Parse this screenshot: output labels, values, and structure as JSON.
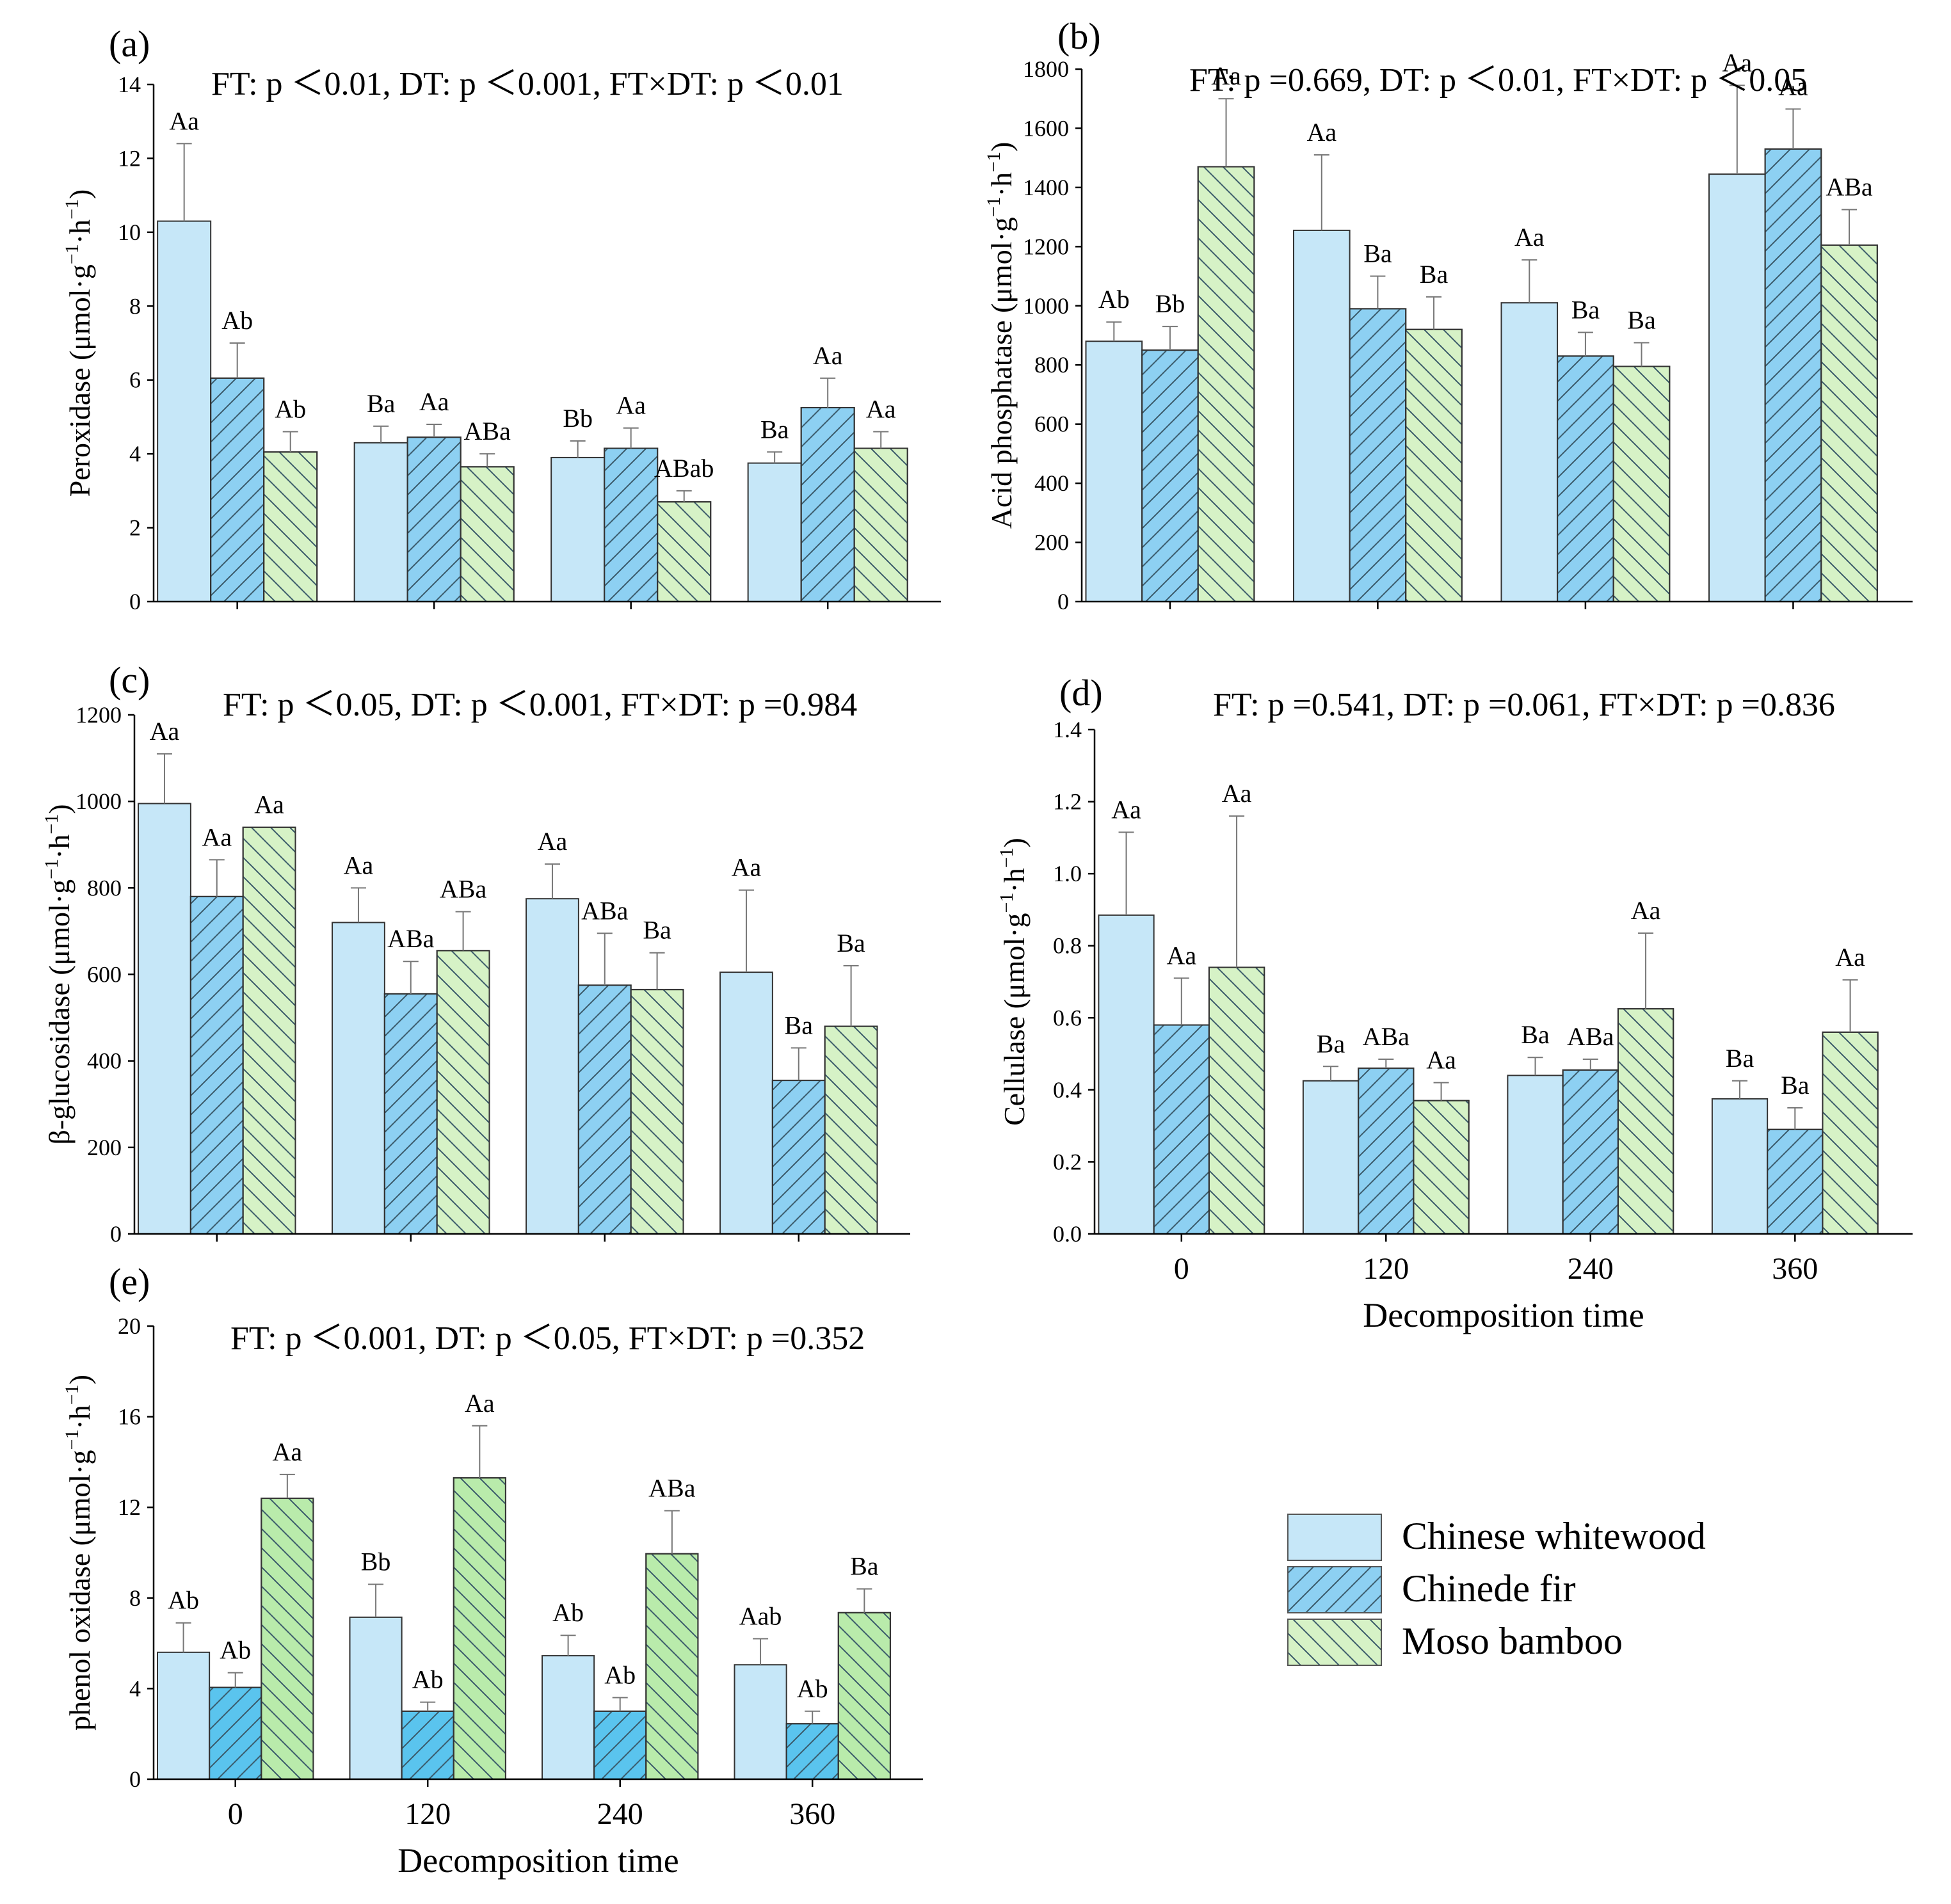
{
  "series_names": [
    "Chinese whitewood",
    "Chinede fir",
    "Moso bamboo"
  ],
  "x_categories": [
    "0",
    "120",
    "240",
    "360"
  ],
  "x_axis_label": "Decomposition time",
  "colors": {
    "chinese_whitewood": "#c6e7f8",
    "chinede_fir": "#8dd0f2",
    "chinede_fir_e": "#5ac4ee",
    "moso_bamboo": "#d6f2c6",
    "moso_bamboo_e": "#b9ebab",
    "hatch": "#3a5a6a",
    "error_bar": "#777777"
  },
  "chart_data": [
    {
      "type": "bar",
      "panel": "(a)",
      "title": "FT: p ＜0.01, DT: p ＜0.001, FT×DT: p ＜0.01",
      "ylabel_main": "Peroxidase (μmol·g",
      "ylabel_sup1": "−1",
      "ylabel_mid": "·h",
      "ylabel_sup2": "−1",
      "ylabel_end": ")",
      "ylim": [
        0,
        14
      ],
      "yticks": [
        "0",
        "2",
        "4",
        "6",
        "8",
        "10",
        "12",
        "14"
      ],
      "categories": [
        "0",
        "120",
        "240",
        "360"
      ],
      "series": [
        {
          "name": "Chinese whitewood",
          "values": [
            10.3,
            4.3,
            3.9,
            3.75
          ],
          "errors": [
            2.1,
            0.45,
            0.45,
            0.3
          ],
          "labels": [
            "Aa",
            "Ba",
            "Bb",
            "Ba"
          ]
        },
        {
          "name": "Chinede fir",
          "values": [
            6.05,
            4.45,
            4.15,
            5.25
          ],
          "errors": [
            0.95,
            0.35,
            0.55,
            0.8
          ],
          "labels": [
            "Ab",
            "Aa",
            "Aa",
            "Aa"
          ]
        },
        {
          "name": "Moso bamboo",
          "values": [
            4.05,
            3.65,
            2.7,
            4.15
          ],
          "errors": [
            0.55,
            0.35,
            0.3,
            0.45
          ],
          "labels": [
            "Ab",
            "ABa",
            "ABab",
            "Aa"
          ]
        }
      ]
    },
    {
      "type": "bar",
      "panel": "(b)",
      "title": "FT: p =0.669, DT: p ＜0.01, FT×DT: p ＜0.05",
      "ylabel_main": "Acid phosphatase (μmol·g",
      "ylabel_sup1": "−1",
      "ylabel_mid": "·h",
      "ylabel_sup2": "−1",
      "ylabel_end": ")",
      "ylim": [
        0,
        1800
      ],
      "yticks": [
        "0",
        "200",
        "400",
        "600",
        "800",
        "1000",
        "1200",
        "1400",
        "1600",
        "1800"
      ],
      "categories": [
        "0",
        "120",
        "240",
        "360"
      ],
      "series": [
        {
          "name": "Chinese whitewood",
          "values": [
            880,
            1255,
            1010,
            1445
          ],
          "errors": [
            65,
            255,
            145,
            300
          ],
          "labels": [
            "Ab",
            "Aa",
            "Aa",
            "Aa"
          ]
        },
        {
          "name": "Chinede fir",
          "values": [
            850,
            990,
            830,
            1530
          ],
          "errors": [
            80,
            110,
            80,
            135
          ],
          "labels": [
            "Bb",
            "Ba",
            "Ba",
            "Aa"
          ]
        },
        {
          "name": "Moso bamboo",
          "values": [
            1470,
            920,
            795,
            1205
          ],
          "errors": [
            230,
            110,
            80,
            120
          ],
          "labels": [
            "Aa",
            "Ba",
            "Ba",
            "ABa"
          ]
        }
      ]
    },
    {
      "type": "bar",
      "panel": "(c)",
      "title": "FT: p ＜0.05, DT: p ＜0.001, FT×DT: p =0.984",
      "ylabel_main": "β-glucosidase (μmol·g",
      "ylabel_sup1": "−1",
      "ylabel_mid": "·h",
      "ylabel_sup2": "−1",
      "ylabel_end": ")",
      "ylim": [
        0,
        1200
      ],
      "yticks": [
        "0",
        "200",
        "400",
        "600",
        "800",
        "1000",
        "1200"
      ],
      "categories": [
        "0",
        "120",
        "240",
        "360"
      ],
      "series": [
        {
          "name": "Chinese whitewood",
          "values": [
            995,
            720,
            775,
            605
          ],
          "errors": [
            115,
            80,
            80,
            190
          ],
          "labels": [
            "Aa",
            "Aa",
            "Aa",
            "Aa"
          ]
        },
        {
          "name": "Chinede fir",
          "values": [
            780,
            555,
            575,
            355
          ],
          "errors": [
            85,
            75,
            120,
            75
          ],
          "labels": [
            "Aa",
            "ABa",
            "ABa",
            "Ba"
          ]
        },
        {
          "name": "Moso bamboo",
          "values": [
            940,
            655,
            565,
            480
          ],
          "errors": [
            0,
            90,
            85,
            140
          ],
          "labels": [
            "Aa",
            "ABa",
            "Ba",
            "Ba"
          ]
        }
      ]
    },
    {
      "type": "bar",
      "panel": "(d)",
      "title": "FT: p =0.541, DT: p =0.061, FT×DT: p =0.836",
      "ylabel_main": "Cellulase (μmol·g",
      "ylabel_sup1": "−1",
      "ylabel_mid": "·h",
      "ylabel_sup2": "−1",
      "ylabel_end": ")",
      "ylim": [
        0,
        1.4
      ],
      "yticks": [
        "0.0",
        "0.2",
        "0.4",
        "0.6",
        "0.8",
        "1.0",
        "1.2",
        "1.4"
      ],
      "categories": [
        "0",
        "120",
        "240",
        "360"
      ],
      "series": [
        {
          "name": "Chinese whitewood",
          "values": [
            0.885,
            0.425,
            0.44,
            0.375
          ],
          "errors": [
            0.23,
            0.04,
            0.05,
            0.05
          ],
          "labels": [
            "Aa",
            "Ba",
            "Ba",
            "Ba"
          ]
        },
        {
          "name": "Chinede fir",
          "values": [
            0.58,
            0.46,
            0.455,
            0.29
          ],
          "errors": [
            0.13,
            0.025,
            0.03,
            0.06
          ],
          "labels": [
            "Aa",
            "ABa",
            "ABa",
            "Ba"
          ]
        },
        {
          "name": "Moso bamboo",
          "values": [
            0.74,
            0.37,
            0.625,
            0.56
          ],
          "errors": [
            0.42,
            0.05,
            0.21,
            0.145
          ],
          "labels": [
            "Aa",
            "Aa",
            "Aa",
            "Aa"
          ]
        }
      ]
    },
    {
      "type": "bar",
      "panel": "(e)",
      "title": "FT: p ＜0.001, DT: p ＜0.05, FT×DT: p =0.352",
      "ylabel_main": "phenol oxidase (μmol·g",
      "ylabel_sup1": "−1",
      "ylabel_mid": "·h",
      "ylabel_sup2": "−1",
      "ylabel_end": ")",
      "ylim": [
        0,
        20
      ],
      "yticks": [
        "0",
        "4",
        "8",
        "12",
        "16",
        "20"
      ],
      "categories": [
        "0",
        "120",
        "240",
        "360"
      ],
      "series": [
        {
          "name": "Chinese whitewood",
          "values": [
            5.6,
            7.15,
            5.45,
            5.05
          ],
          "errors": [
            1.3,
            1.45,
            0.9,
            1.15
          ],
          "labels": [
            "Ab",
            "Bb",
            "Ab",
            "Aab"
          ]
        },
        {
          "name": "Chinede fir",
          "values": [
            4.05,
            3.0,
            3.0,
            2.45
          ],
          "errors": [
            0.65,
            0.4,
            0.6,
            0.55
          ],
          "labels": [
            "Ab",
            "Ab",
            "Ab",
            "Ab"
          ]
        },
        {
          "name": "Moso bamboo",
          "values": [
            12.4,
            13.3,
            9.95,
            7.35
          ],
          "errors": [
            1.05,
            2.3,
            1.9,
            1.05
          ],
          "labels": [
            "Aa",
            "Aa",
            "ABa",
            "Ba"
          ]
        }
      ]
    }
  ]
}
